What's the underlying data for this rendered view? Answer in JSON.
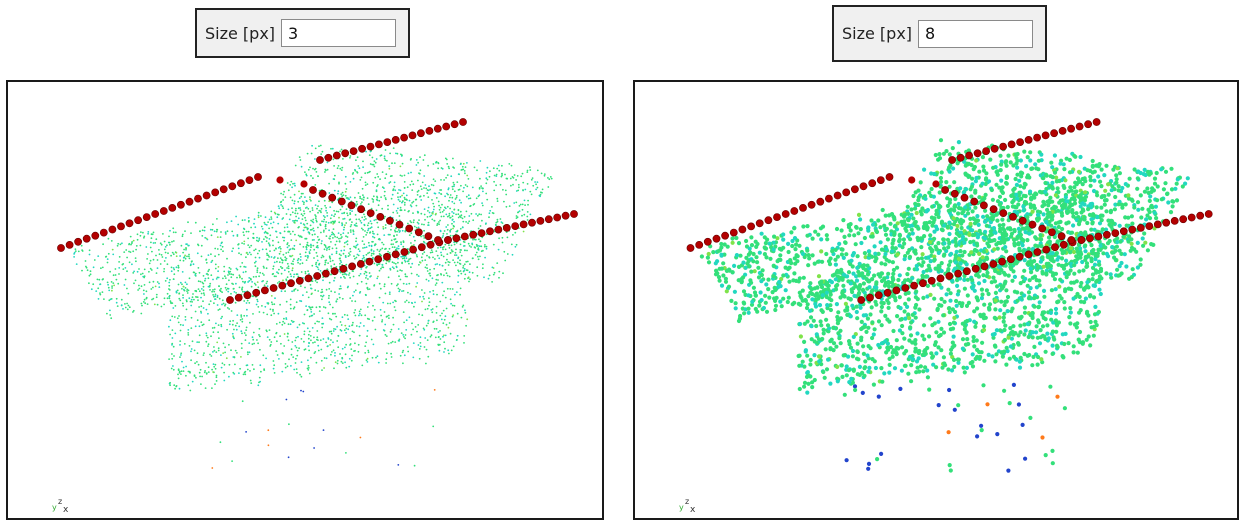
{
  "left_panel": {
    "size_label": "Size [px]",
    "size_value": "3",
    "point_size": 3,
    "axis_labels": {
      "z": "z",
      "y": "y",
      "x": "x"
    }
  },
  "right_panel": {
    "size_label": "Size [px]",
    "size_value": "8",
    "point_size": 8,
    "axis_labels": {
      "z": "z",
      "y": "y",
      "x": "x"
    }
  },
  "colors": {
    "marker_red": "#b30000",
    "cloud_green": "#33e07a",
    "cloud_cyan": "#22d8c0",
    "cloud_blue": "#2244cc",
    "cloud_orange": "#ff7a1a"
  }
}
